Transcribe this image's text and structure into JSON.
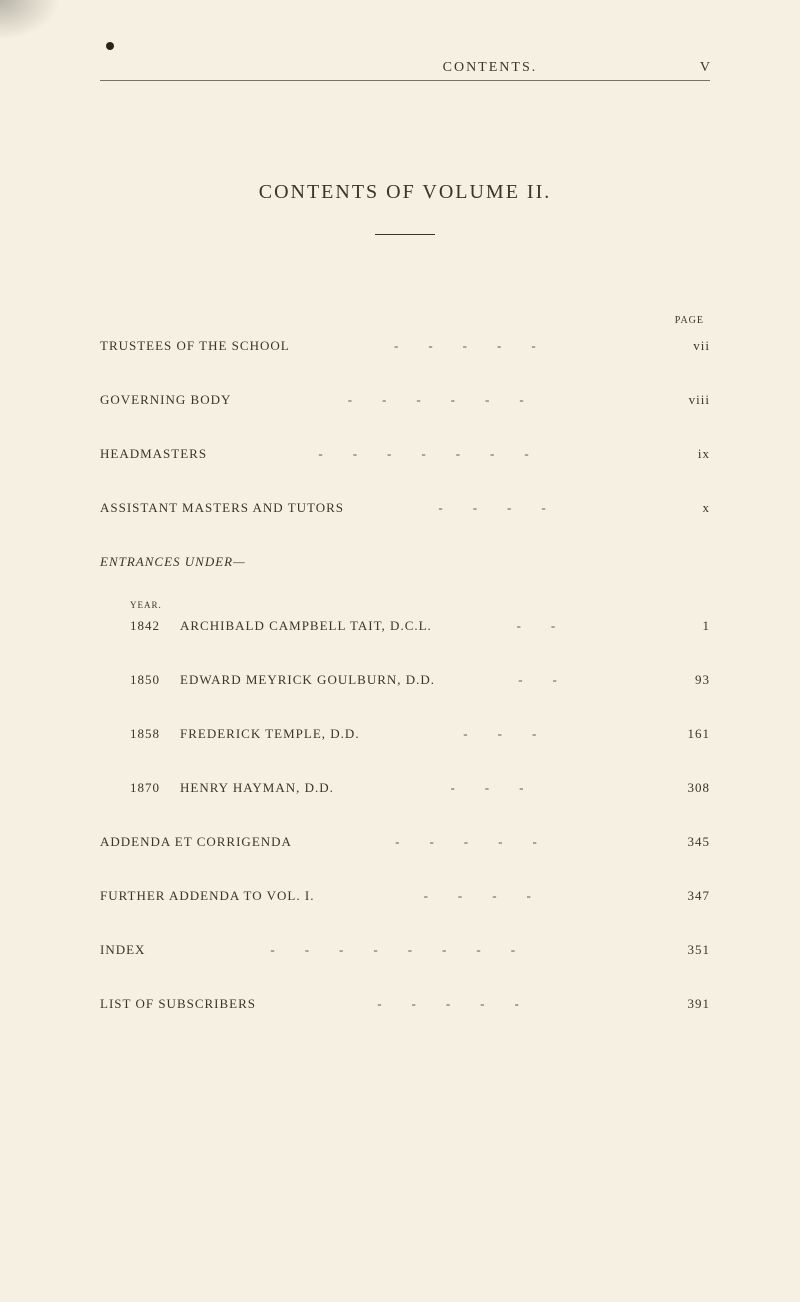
{
  "header": {
    "center": "CONTENTS.",
    "right": "V"
  },
  "title": "CONTENTS OF VOLUME II.",
  "page_label": "PAGE",
  "top_entries": [
    {
      "label": "TRUSTEES OF THE SCHOOL",
      "dashes": "-----",
      "page": "vii"
    },
    {
      "label": "GOVERNING BODY",
      "dashes": "------",
      "page": "viii"
    },
    {
      "label": "HEADMASTERS",
      "dashes": "-------",
      "page": "ix"
    },
    {
      "label": "ASSISTANT MASTERS AND TUTORS",
      "dashes": "----",
      "page": "x"
    }
  ],
  "section_heading": "ENTRANCES UNDER—",
  "year_col_label": "YEAR.",
  "year_entries": [
    {
      "year": "1842",
      "name": "ARCHIBALD CAMPBELL TAIT, D.C.L.",
      "dashes": "--",
      "page": "1"
    },
    {
      "year": "1850",
      "name": "EDWARD MEYRICK GOULBURN, D.D.",
      "dashes": "--",
      "page": "93"
    },
    {
      "year": "1858",
      "name": "FREDERICK TEMPLE, D.D.",
      "dashes": "---",
      "page": "161"
    },
    {
      "year": "1870",
      "name": "HENRY HAYMAN, D.D.",
      "dashes": "---",
      "page": "308"
    }
  ],
  "bottom_entries": [
    {
      "label": "ADDENDA ET CORRIGENDA",
      "dashes": "-----",
      "page": "345"
    },
    {
      "label": "FURTHER ADDENDA TO VOL. I.",
      "dashes": "----",
      "page": "347"
    },
    {
      "label": "INDEX",
      "dashes": "--------",
      "page": "351"
    },
    {
      "label": "LIST OF SUBSCRIBERS",
      "dashes": "-----",
      "page": "391"
    }
  ],
  "colors": {
    "background": "#f5f0e1",
    "text": "#3a3528",
    "rule": "#7a7260"
  }
}
